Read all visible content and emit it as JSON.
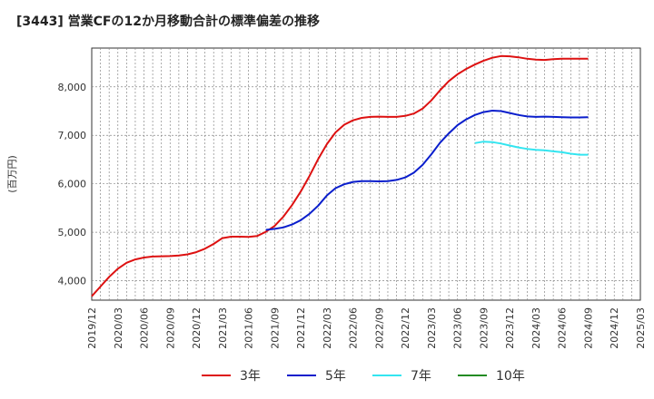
{
  "chart_data": {
    "type": "line",
    "title": "[3443]  営業CFの12か月移動合計の標準偏差の推移",
    "ylabel": "(百万円)",
    "xlabel": "",
    "ylim": [
      3600,
      8800
    ],
    "yticks": [
      4000,
      5000,
      6000,
      7000,
      8000
    ],
    "ytick_labels": [
      "4,000",
      "5,000",
      "6,000",
      "7,000",
      "8,000"
    ],
    "xlim": [
      "2019/12",
      "2025/03"
    ],
    "xtick_labels": [
      "2019/12",
      "2020/03",
      "2020/06",
      "2020/09",
      "2020/12",
      "2021/03",
      "2021/06",
      "2021/09",
      "2021/12",
      "2022/03",
      "2022/06",
      "2022/09",
      "2022/12",
      "2023/03",
      "2023/06",
      "2023/09",
      "2023/12",
      "2024/03",
      "2024/06",
      "2024/09",
      "2024/12",
      "2025/03"
    ],
    "grid": true,
    "legend_position": "bottom",
    "series": [
      {
        "name": "3年",
        "color": "#dd1111",
        "x": [
          "2019/12",
          "2020/01",
          "2020/02",
          "2020/03",
          "2020/04",
          "2020/05",
          "2020/06",
          "2020/07",
          "2020/08",
          "2020/09",
          "2020/10",
          "2020/11",
          "2020/12",
          "2021/01",
          "2021/02",
          "2021/03",
          "2021/04",
          "2021/05",
          "2021/06",
          "2021/07",
          "2021/08",
          "2021/09",
          "2021/10",
          "2021/11",
          "2021/12",
          "2022/01",
          "2022/02",
          "2022/03",
          "2022/04",
          "2022/05",
          "2022/06",
          "2022/07",
          "2022/08",
          "2022/09",
          "2022/10",
          "2022/11",
          "2022/12",
          "2023/01",
          "2023/02",
          "2023/03",
          "2023/04",
          "2023/05",
          "2023/06",
          "2023/07",
          "2023/08",
          "2023/09",
          "2023/10",
          "2023/11",
          "2023/12",
          "2024/01",
          "2024/02",
          "2024/03",
          "2024/04",
          "2024/05",
          "2024/06",
          "2024/07",
          "2024/08",
          "2024/09"
        ],
        "values": [
          3680,
          3880,
          4080,
          4250,
          4370,
          4440,
          4480,
          4500,
          4505,
          4510,
          4520,
          4545,
          4590,
          4660,
          4760,
          4880,
          4910,
          4910,
          4905,
          4925,
          5010,
          5130,
          5320,
          5560,
          5840,
          6160,
          6510,
          6820,
          7060,
          7220,
          7310,
          7360,
          7380,
          7385,
          7380,
          7380,
          7400,
          7450,
          7550,
          7720,
          7930,
          8120,
          8260,
          8370,
          8460,
          8540,
          8600,
          8635,
          8630,
          8610,
          8580,
          8560,
          8555,
          8570,
          8580,
          8580,
          8580,
          8580
        ]
      },
      {
        "name": "5年",
        "color": "#0a1ecc",
        "x": [
          "2021/08",
          "2021/09",
          "2021/10",
          "2021/11",
          "2021/12",
          "2022/01",
          "2022/02",
          "2022/03",
          "2022/04",
          "2022/05",
          "2022/06",
          "2022/07",
          "2022/08",
          "2022/09",
          "2022/10",
          "2022/11",
          "2022/12",
          "2023/01",
          "2023/02",
          "2023/03",
          "2023/04",
          "2023/05",
          "2023/06",
          "2023/07",
          "2023/08",
          "2023/09",
          "2023/10",
          "2023/11",
          "2023/12",
          "2024/01",
          "2024/02",
          "2024/03",
          "2024/04",
          "2024/05",
          "2024/06",
          "2024/07",
          "2024/08",
          "2024/09"
        ],
        "values": [
          5050,
          5070,
          5100,
          5160,
          5250,
          5380,
          5550,
          5760,
          5910,
          5990,
          6040,
          6055,
          6055,
          6050,
          6055,
          6080,
          6130,
          6230,
          6390,
          6610,
          6850,
          7040,
          7210,
          7330,
          7420,
          7480,
          7510,
          7500,
          7460,
          7420,
          7390,
          7380,
          7385,
          7380,
          7375,
          7370,
          7370,
          7375
        ]
      },
      {
        "name": "7年",
        "color": "#33e5f0",
        "x": [
          "2023/08",
          "2023/09",
          "2023/10",
          "2023/11",
          "2023/12",
          "2024/01",
          "2024/02",
          "2024/03",
          "2024/04",
          "2024/05",
          "2024/06",
          "2024/07",
          "2024/08",
          "2024/09"
        ],
        "values": [
          6840,
          6870,
          6860,
          6830,
          6790,
          6750,
          6720,
          6700,
          6690,
          6670,
          6650,
          6620,
          6600,
          6600
        ]
      },
      {
        "name": "10年",
        "color": "#228b22",
        "x": [],
        "values": []
      }
    ]
  }
}
